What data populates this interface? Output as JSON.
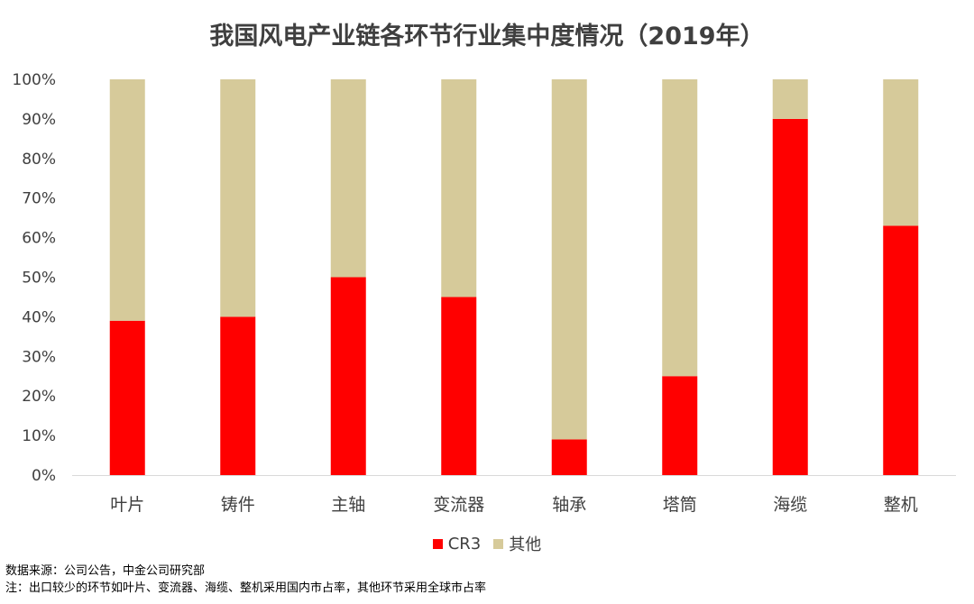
{
  "chart_data": {
    "type": "bar",
    "stacked": true,
    "title": "我国风电产业链各环节行业集中度情况（2019年）",
    "categories": [
      "叶片",
      "铸件",
      "主轴",
      "变流器",
      "轴承",
      "塔筒",
      "海缆",
      "整机"
    ],
    "series": [
      {
        "name": "CR3",
        "color": "#ff0000",
        "values": [
          39,
          40,
          50,
          45,
          9,
          25,
          90,
          63
        ]
      },
      {
        "name": "其他",
        "color": "#d6ca9a",
        "values": [
          61,
          60,
          50,
          55,
          91,
          75,
          10,
          37
        ]
      }
    ],
    "y_ticks": [
      "0%",
      "10%",
      "20%",
      "30%",
      "40%",
      "50%",
      "60%",
      "70%",
      "80%",
      "90%",
      "100%"
    ],
    "ylim": [
      0,
      100
    ],
    "xlabel": "",
    "ylabel": "",
    "grid": false,
    "legend_position": "bottom"
  },
  "notes": {
    "source": "数据来源：公司公告，中金公司研究部",
    "footnote": "注：出口较少的环节如叶片、变流器、海缆、整机采用国内市占率，其他环节采用全球市占率"
  }
}
